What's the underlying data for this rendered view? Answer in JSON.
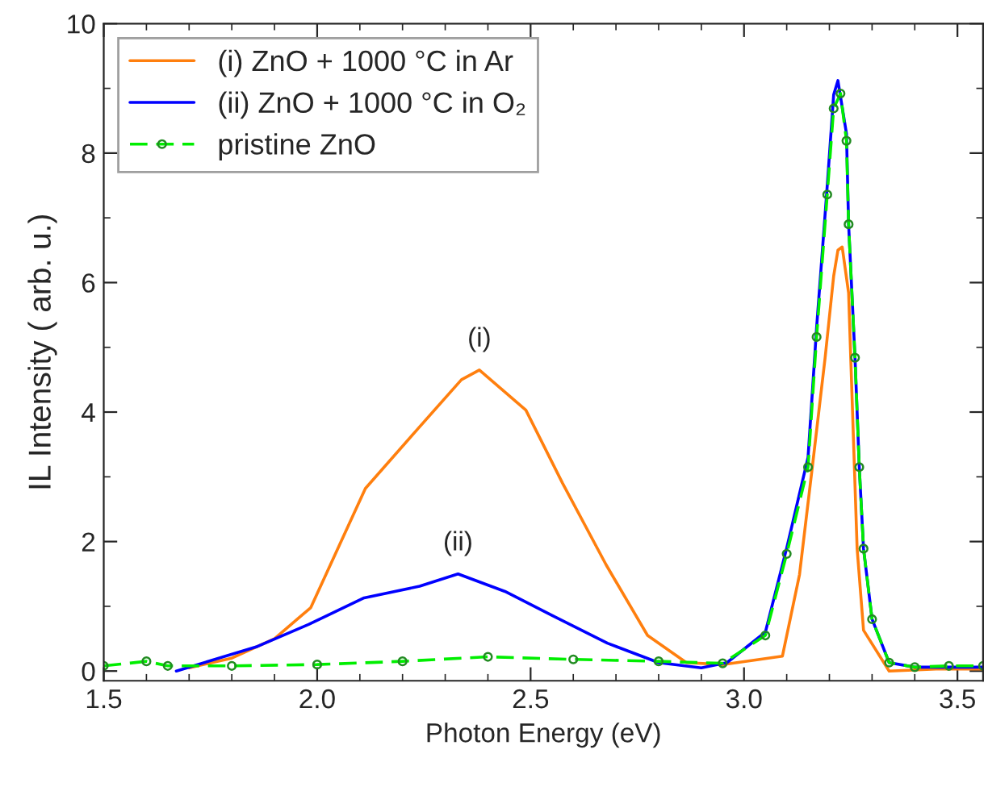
{
  "chart_data": {
    "type": "line",
    "xlabel": "Photon Energy (eV)",
    "ylabel": "IL Intensity ( arb. u.)",
    "xlim": [
      1.5,
      3.56
    ],
    "ylim": [
      -0.15,
      10
    ],
    "xticks": [
      {
        "value": 1.5,
        "label": "1.5"
      },
      {
        "value": 2.0,
        "label": "2.0"
      },
      {
        "value": 2.5,
        "label": "2.5"
      },
      {
        "value": 3.0,
        "label": "3.0"
      },
      {
        "value": 3.5,
        "label": "3.5"
      }
    ],
    "yticks": [
      0,
      2,
      4,
      6,
      8,
      10
    ],
    "grid": false,
    "legend": "top left",
    "annotations": [
      "(i)",
      "(ii)"
    ],
    "series": [
      {
        "name": "(i) ZnO + 1000 °C in Ar",
        "color": "#ff7f0e",
        "line_style": "solid",
        "marker": "none",
        "x": [
          1.7,
          1.8,
          1.9,
          1.985,
          2.113,
          2.237,
          2.338,
          2.38,
          2.489,
          2.575,
          2.677,
          2.774,
          2.865,
          2.95,
          3.09,
          3.13,
          3.16,
          3.19,
          3.21,
          3.22,
          3.23,
          3.245,
          3.25,
          3.265,
          3.28,
          3.34,
          3.45,
          3.56
        ],
        "values": [
          0.05,
          0.2,
          0.5,
          0.98,
          2.82,
          3.75,
          4.5,
          4.65,
          4.03,
          2.9,
          1.64,
          0.55,
          0.13,
          0.1,
          0.23,
          1.49,
          3.15,
          4.84,
          6.1,
          6.5,
          6.55,
          5.84,
          4.84,
          1.89,
          0.63,
          0.0,
          0.03,
          0.03
        ]
      },
      {
        "name": "(ii) ZnO + 1000 °C in O₂",
        "color": "#0000ff",
        "line_style": "solid",
        "marker": "none",
        "x": [
          1.67,
          1.86,
          1.98,
          2.11,
          2.24,
          2.33,
          2.44,
          2.55,
          2.68,
          2.8,
          2.9,
          2.96,
          3.05,
          3.1,
          3.15,
          3.17,
          3.195,
          3.21,
          3.22,
          3.24,
          3.245,
          3.26,
          3.27,
          3.28,
          3.3,
          3.34,
          3.4,
          3.56
        ],
        "values": [
          0.0,
          0.38,
          0.72,
          1.13,
          1.31,
          1.5,
          1.23,
          0.86,
          0.43,
          0.13,
          0.05,
          0.13,
          0.6,
          1.9,
          3.3,
          5.3,
          7.5,
          8.9,
          9.12,
          8.3,
          6.9,
          4.84,
          3.15,
          1.89,
          0.8,
          0.13,
          0.06,
          0.06
        ]
      },
      {
        "name": "pristine ZnO",
        "color": "#00ee00",
        "line_style": "dashed",
        "marker": "circle",
        "x": [
          1.5,
          1.6,
          1.65,
          1.8,
          2.0,
          2.2,
          2.4,
          2.6,
          2.8,
          2.95,
          3.05,
          3.1,
          3.15,
          3.17,
          3.195,
          3.21,
          3.226,
          3.24,
          3.245,
          3.26,
          3.27,
          3.28,
          3.3,
          3.34,
          3.4,
          3.48,
          3.56
        ],
        "values": [
          0.08,
          0.15,
          0.08,
          0.08,
          0.1,
          0.15,
          0.22,
          0.18,
          0.15,
          0.12,
          0.55,
          1.81,
          3.15,
          5.16,
          7.36,
          8.69,
          8.92,
          8.19,
          6.9,
          4.84,
          3.15,
          1.89,
          0.8,
          0.13,
          0.06,
          0.08,
          0.08
        ]
      }
    ]
  }
}
